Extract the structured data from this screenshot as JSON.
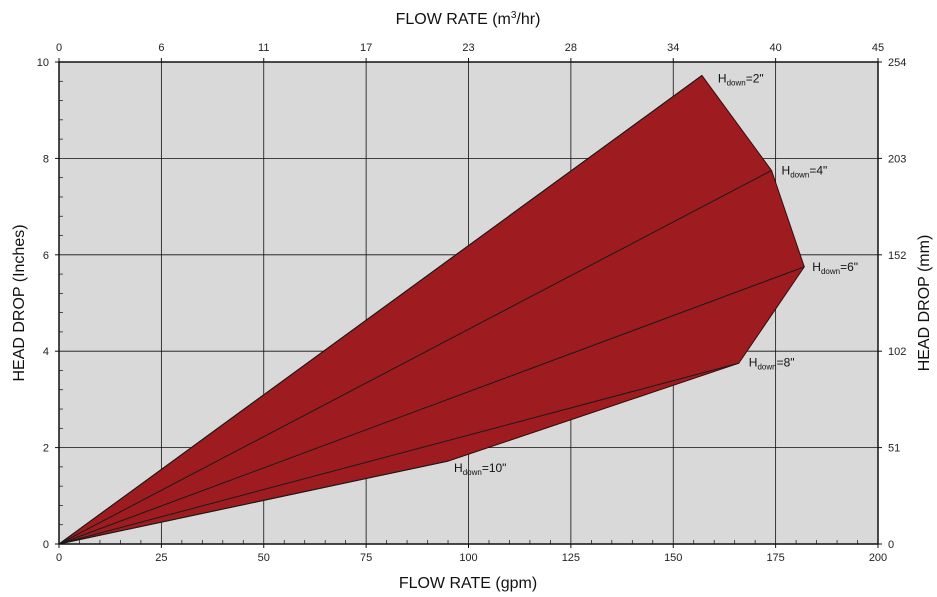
{
  "chart_data": {
    "type": "area",
    "title": "",
    "xlabel": "FLOW RATE (gpm)",
    "ylabel": "HEAD DROP (Inches)",
    "x2label_prefix": "FLOW RATE (m",
    "x2label_sup": "3",
    "x2label_suffix": "/hr)",
    "y2label": "HEAD DROP (mm)",
    "xlim": [
      0,
      200
    ],
    "ylim": [
      0,
      10
    ],
    "x_ticks": [
      0,
      25,
      50,
      75,
      100,
      125,
      150,
      175,
      200
    ],
    "x_tick_labels": [
      "0",
      "25",
      "50",
      "75",
      "100",
      "125",
      "150",
      "175",
      "200"
    ],
    "y_ticks": [
      0,
      2,
      4,
      6,
      8,
      10
    ],
    "y_tick_labels": [
      "0",
      "2",
      "4",
      "6",
      "8",
      "10"
    ],
    "x2_tick_labels": [
      "0",
      "6",
      "11",
      "17",
      "23",
      "28",
      "34",
      "40",
      "45"
    ],
    "y2_tick_labels": [
      "0",
      "51",
      "102",
      "152",
      "203",
      "254"
    ],
    "grid": true,
    "fill_color": "#9e1c20",
    "plot_background": "#d9d9d9",
    "envelope": {
      "x": [
        0,
        157,
        174,
        182,
        166,
        95,
        0
      ],
      "y": [
        0,
        9.72,
        7.75,
        5.75,
        3.75,
        1.72,
        0
      ]
    },
    "series": [
      {
        "name": "H",
        "name_sub": "down",
        "name_suffix": "=2\"",
        "x": [
          0,
          157
        ],
        "y": [
          0,
          9.72
        ]
      },
      {
        "name": "H",
        "name_sub": "down",
        "name_suffix": "=4\"",
        "x": [
          0,
          174
        ],
        "y": [
          0,
          7.75
        ]
      },
      {
        "name": "H",
        "name_sub": "down",
        "name_suffix": "=6\"",
        "x": [
          0,
          182
        ],
        "y": [
          0,
          5.75
        ]
      },
      {
        "name": "H",
        "name_sub": "down",
        "name_suffix": "=8\"",
        "x": [
          0,
          166
        ],
        "y": [
          0,
          3.75
        ]
      },
      {
        "name": "H",
        "name_sub": "down",
        "name_suffix": "=10\"",
        "x": [
          0,
          95
        ],
        "y": [
          0,
          1.72
        ]
      }
    ]
  }
}
